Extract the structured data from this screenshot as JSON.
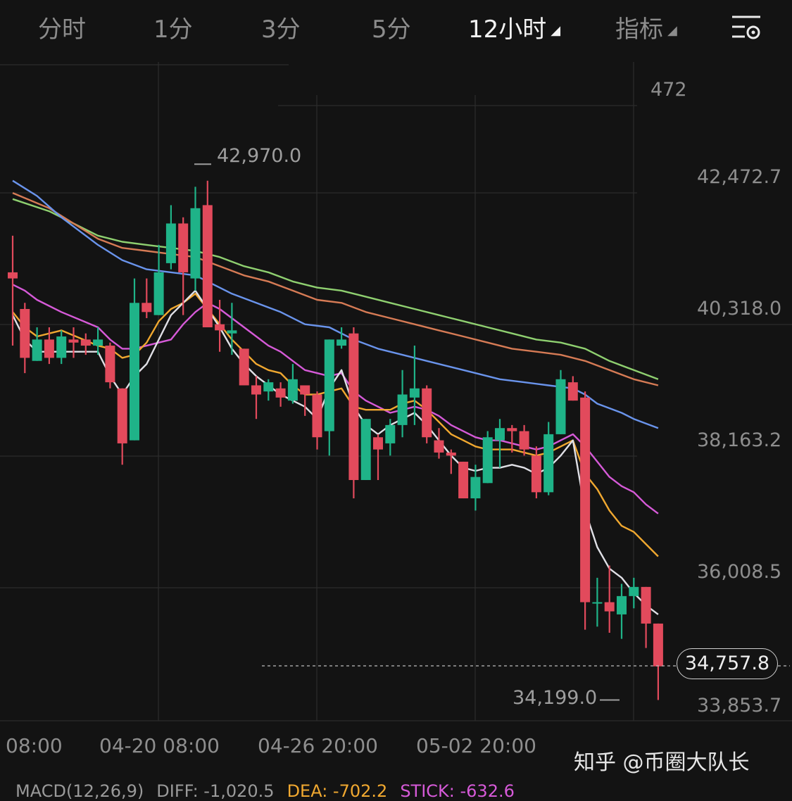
{
  "tabs": [
    {
      "label": "分时",
      "active": false
    },
    {
      "label": "1分",
      "active": false
    },
    {
      "label": "3分",
      "active": false
    },
    {
      "label": "5分",
      "active": false
    },
    {
      "label": "12小时",
      "active": true
    },
    {
      "label": "指标",
      "active": false
    }
  ],
  "settings_icon": "chart-settings-icon",
  "y_axis": {
    "top_partial": "472",
    "labels": [
      "42,472.7",
      "40,318.0",
      "38,163.2",
      "36,008.5",
      "33,853.7"
    ]
  },
  "x_axis": {
    "labels": [
      "08:00",
      "04-20 08:00",
      "04-26 20:00",
      "05-02 20:00"
    ]
  },
  "markers": {
    "high": "42,970.0",
    "low": "34,199.0",
    "current": "34,757.8"
  },
  "watermark": "知乎 @币圈大队长",
  "macd_row": {
    "name": "MACD(12,26,9)",
    "diff": "DIFF: -1,020.5",
    "dea": "DEA: -702.2",
    "stick": "STICK: -632.6"
  },
  "colors": {
    "up": "#1fb388",
    "down": "#e24a5c",
    "ma_white": "#e0e0e6",
    "ma_orange": "#f0a830",
    "ma_magenta": "#d65ad8",
    "ma_blue": "#6a94ec",
    "ma_salmon": "#d67b55",
    "ma_green": "#8fd070"
  },
  "chart_data": {
    "type": "candlestick",
    "y_range": [
      33853.7,
      43200
    ],
    "candles": [
      [
        41200,
        41100,
        41800,
        40000
      ],
      [
        40600,
        39800,
        40700,
        39550
      ],
      [
        39750,
        40100,
        40300,
        39750
      ],
      [
        40100,
        39800,
        40300,
        39700
      ],
      [
        39800,
        40150,
        40250,
        39700
      ],
      [
        40100,
        40050,
        40300,
        39800
      ],
      [
        40100,
        40000,
        40200,
        39850
      ],
      [
        40000,
        40100,
        40300,
        39850
      ],
      [
        40000,
        39400,
        40050,
        39300
      ],
      [
        39300,
        38400,
        39300,
        38050
      ],
      [
        38450,
        40700,
        41100,
        38450
      ],
      [
        40700,
        40550,
        41100,
        40450
      ],
      [
        40500,
        41200,
        41650,
        40500
      ],
      [
        41350,
        42000,
        42300,
        41250
      ],
      [
        42000,
        41200,
        42100,
        40500
      ],
      [
        41100,
        42250,
        42600,
        40900
      ],
      [
        42300,
        40300,
        42700,
        41600
      ],
      [
        40350,
        40250,
        40750,
        39900
      ],
      [
        40200,
        40250,
        40700,
        39850
      ],
      [
        39950,
        39350,
        39950,
        39350
      ],
      [
        39350,
        39200,
        39500,
        38800
      ],
      [
        39250,
        39400,
        39450,
        39100
      ],
      [
        39300,
        39150,
        39400,
        39000
      ],
      [
        39100,
        39450,
        39700,
        39050
      ],
      [
        39350,
        39200,
        39300,
        38850
      ],
      [
        39200,
        38500,
        39250,
        38300
      ],
      [
        38600,
        40100,
        40100,
        38200
      ],
      [
        40000,
        40100,
        40300,
        39950
      ],
      [
        40200,
        37800,
        40300,
        37500
      ],
      [
        37800,
        38800,
        38800,
        37800
      ],
      [
        38500,
        38300,
        38550,
        37800
      ],
      [
        38400,
        38700,
        38800,
        38200
      ],
      [
        38700,
        39200,
        39600,
        38500
      ],
      [
        39150,
        39300,
        40000,
        38700
      ],
      [
        39300,
        38500,
        39350,
        38400
      ],
      [
        38450,
        38250,
        38650,
        38150
      ],
      [
        38250,
        38200,
        38300,
        37900
      ],
      [
        38100,
        37500,
        38100,
        37500
      ],
      [
        37500,
        37850,
        38050,
        37300
      ],
      [
        37750,
        38500,
        38600,
        37750
      ],
      [
        38450,
        38650,
        38800,
        38000
      ],
      [
        38650,
        38600,
        38700,
        38250
      ],
      [
        38600,
        38300,
        38700,
        38200
      ],
      [
        38200,
        37600,
        38350,
        37500
      ],
      [
        37600,
        38550,
        38750,
        37550
      ],
      [
        38550,
        39450,
        39600,
        38550
      ],
      [
        39400,
        39100,
        39500,
        39100
      ],
      [
        39150,
        35800,
        39250,
        35350
      ],
      [
        35800,
        35800,
        36200,
        35400
      ],
      [
        35800,
        35650,
        36400,
        35300
      ],
      [
        35600,
        35900,
        36100,
        35200
      ],
      [
        35900,
        36050,
        36200,
        35700
      ],
      [
        36050,
        35450,
        36050,
        35050
      ],
      [
        35450,
        34750,
        35450,
        34199
      ]
    ],
    "moving_averages": {
      "white": [
        [
          0,
          40500
        ],
        [
          1,
          40100
        ],
        [
          2,
          39900
        ],
        [
          4,
          39900
        ],
        [
          7,
          39900
        ],
        [
          8,
          39500
        ],
        [
          9,
          39200
        ],
        [
          10,
          39500
        ],
        [
          11,
          39700
        ],
        [
          12,
          40100
        ],
        [
          13,
          40500
        ],
        [
          14,
          40700
        ],
        [
          15,
          40900
        ],
        [
          16,
          40600
        ],
        [
          17,
          40300
        ],
        [
          18,
          39950
        ],
        [
          19,
          39700
        ],
        [
          20,
          39500
        ],
        [
          21,
          39350
        ],
        [
          22,
          39200
        ],
        [
          23,
          39100
        ],
        [
          24,
          39000
        ],
        [
          25,
          38800
        ],
        [
          26,
          39300
        ],
        [
          27,
          39600
        ],
        [
          28,
          39000
        ],
        [
          29,
          38700
        ],
        [
          30,
          38550
        ],
        [
          31,
          38700
        ],
        [
          32,
          38800
        ],
        [
          33,
          38900
        ],
        [
          34,
          38700
        ],
        [
          35,
          38450
        ],
        [
          36,
          38200
        ],
        [
          37,
          38000
        ],
        [
          38,
          37950
        ],
        [
          39,
          38000
        ],
        [
          40,
          38000
        ],
        [
          41,
          38050
        ],
        [
          42,
          38000
        ],
        [
          43,
          37900
        ],
        [
          44,
          38000
        ],
        [
          45,
          38200
        ],
        [
          46,
          38450
        ],
        [
          47,
          37300
        ],
        [
          48,
          36700
        ],
        [
          49,
          36350
        ],
        [
          50,
          36200
        ],
        [
          51,
          35950
        ],
        [
          52,
          35750
        ],
        [
          53,
          35600
        ]
      ],
      "orange": [
        [
          0,
          40550
        ],
        [
          1,
          40300
        ],
        [
          2,
          40150
        ],
        [
          4,
          40250
        ],
        [
          7,
          40000
        ],
        [
          8,
          39950
        ],
        [
          9,
          39800
        ],
        [
          10,
          39850
        ],
        [
          11,
          40050
        ],
        [
          12,
          40400
        ],
        [
          13,
          40600
        ],
        [
          14,
          40700
        ],
        [
          15,
          40850
        ],
        [
          16,
          40600
        ],
        [
          17,
          40350
        ],
        [
          18,
          40100
        ],
        [
          19,
          39900
        ],
        [
          20,
          39700
        ],
        [
          21,
          39600
        ],
        [
          22,
          39550
        ],
        [
          23,
          39350
        ],
        [
          24,
          39200
        ],
        [
          25,
          39200
        ],
        [
          26,
          39250
        ],
        [
          27,
          39300
        ],
        [
          28,
          39000
        ],
        [
          29,
          38950
        ],
        [
          30,
          38950
        ],
        [
          31,
          38950
        ],
        [
          32,
          39050
        ],
        [
          33,
          39100
        ],
        [
          34,
          38950
        ],
        [
          35,
          38750
        ],
        [
          36,
          38550
        ],
        [
          37,
          38450
        ],
        [
          38,
          38350
        ],
        [
          39,
          38300
        ],
        [
          40,
          38300
        ],
        [
          41,
          38300
        ],
        [
          42,
          38250
        ],
        [
          43,
          38200
        ],
        [
          44,
          38250
        ],
        [
          45,
          38350
        ],
        [
          46,
          38450
        ],
        [
          47,
          37900
        ],
        [
          48,
          37650
        ],
        [
          49,
          37300
        ],
        [
          50,
          37050
        ],
        [
          51,
          36950
        ],
        [
          52,
          36750
        ],
        [
          53,
          36550
        ]
      ],
      "magenta": [
        [
          0,
          41000
        ],
        [
          1,
          40900
        ],
        [
          2,
          40750
        ],
        [
          4,
          40550
        ],
        [
          7,
          40300
        ],
        [
          8,
          40100
        ],
        [
          9,
          39950
        ],
        [
          10,
          39950
        ],
        [
          11,
          40000
        ],
        [
          12,
          40050
        ],
        [
          13,
          40100
        ],
        [
          14,
          40350
        ],
        [
          15,
          40550
        ],
        [
          16,
          40700
        ],
        [
          17,
          40600
        ],
        [
          18,
          40450
        ],
        [
          19,
          40300
        ],
        [
          20,
          40150
        ],
        [
          21,
          40000
        ],
        [
          22,
          39900
        ],
        [
          23,
          39750
        ],
        [
          24,
          39600
        ],
        [
          25,
          39550
        ],
        [
          26,
          39500
        ],
        [
          27,
          39550
        ],
        [
          28,
          39250
        ],
        [
          29,
          39100
        ],
        [
          30,
          39000
        ],
        [
          31,
          38900
        ],
        [
          32,
          38950
        ],
        [
          33,
          39000
        ],
        [
          34,
          38950
        ],
        [
          35,
          38850
        ],
        [
          36,
          38700
        ],
        [
          37,
          38600
        ],
        [
          38,
          38500
        ],
        [
          39,
          38450
        ],
        [
          40,
          38450
        ],
        [
          41,
          38400
        ],
        [
          42,
          38350
        ],
        [
          43,
          38300
        ],
        [
          44,
          38350
        ],
        [
          45,
          38450
        ],
        [
          46,
          38550
        ],
        [
          47,
          38350
        ],
        [
          48,
          38100
        ],
        [
          49,
          37850
        ],
        [
          50,
          37700
        ],
        [
          51,
          37600
        ],
        [
          52,
          37400
        ],
        [
          53,
          37250
        ]
      ],
      "blue": [
        [
          0,
          42700
        ],
        [
          2,
          42450
        ],
        [
          4,
          42100
        ],
        [
          7,
          41650
        ],
        [
          9,
          41400
        ],
        [
          11,
          41250
        ],
        [
          13,
          41200
        ],
        [
          15,
          41150
        ],
        [
          16,
          41050
        ],
        [
          18,
          40850
        ],
        [
          20,
          40700
        ],
        [
          22,
          40550
        ],
        [
          24,
          40350
        ],
        [
          26,
          40300
        ],
        [
          28,
          40100
        ],
        [
          30,
          39950
        ],
        [
          32,
          39850
        ],
        [
          34,
          39750
        ],
        [
          36,
          39650
        ],
        [
          38,
          39550
        ],
        [
          40,
          39450
        ],
        [
          42,
          39400
        ],
        [
          44,
          39350
        ],
        [
          46,
          39300
        ],
        [
          47,
          39200
        ],
        [
          48,
          39050
        ],
        [
          50,
          38900
        ],
        [
          51,
          38800
        ],
        [
          53,
          38650
        ]
      ],
      "salmon": [
        [
          0,
          42500
        ],
        [
          3,
          42250
        ],
        [
          5,
          42000
        ],
        [
          7,
          41750
        ],
        [
          9,
          41600
        ],
        [
          11,
          41550
        ],
        [
          13,
          41500
        ],
        [
          15,
          41450
        ],
        [
          17,
          41300
        ],
        [
          19,
          41150
        ],
        [
          21,
          41050
        ],
        [
          23,
          40900
        ],
        [
          25,
          40750
        ],
        [
          27,
          40700
        ],
        [
          29,
          40550
        ],
        [
          31,
          40450
        ],
        [
          33,
          40350
        ],
        [
          35,
          40250
        ],
        [
          37,
          40150
        ],
        [
          39,
          40050
        ],
        [
          41,
          39950
        ],
        [
          43,
          39900
        ],
        [
          45,
          39850
        ],
        [
          47,
          39750
        ],
        [
          49,
          39600
        ],
        [
          51,
          39450
        ],
        [
          53,
          39350
        ]
      ],
      "green": [
        [
          0,
          42400
        ],
        [
          3,
          42200
        ],
        [
          5,
          42000
        ],
        [
          7,
          41800
        ],
        [
          9,
          41700
        ],
        [
          11,
          41650
        ],
        [
          13,
          41600
        ],
        [
          15,
          41550
        ],
        [
          17,
          41450
        ],
        [
          19,
          41300
        ],
        [
          21,
          41200
        ],
        [
          23,
          41050
        ],
        [
          25,
          40950
        ],
        [
          27,
          40900
        ],
        [
          29,
          40800
        ],
        [
          31,
          40700
        ],
        [
          33,
          40600
        ],
        [
          35,
          40500
        ],
        [
          37,
          40400
        ],
        [
          39,
          40300
        ],
        [
          41,
          40200
        ],
        [
          43,
          40100
        ],
        [
          45,
          40050
        ],
        [
          47,
          39950
        ],
        [
          49,
          39750
        ],
        [
          51,
          39600
        ],
        [
          53,
          39450
        ]
      ]
    }
  }
}
